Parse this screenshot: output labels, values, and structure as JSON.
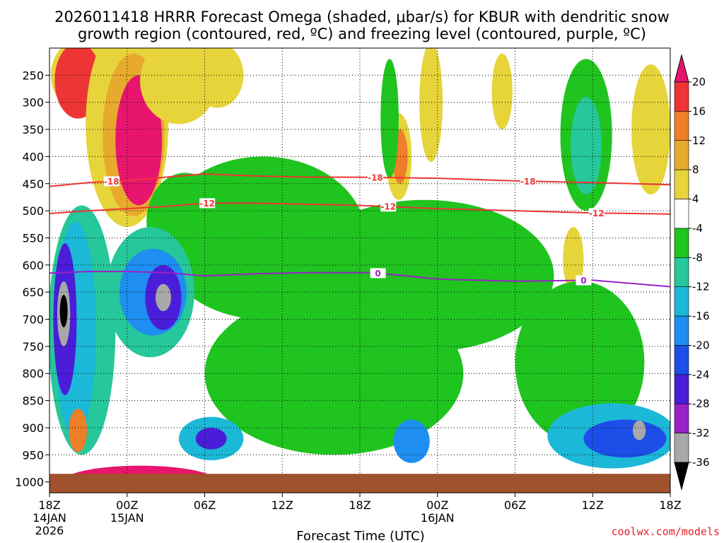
{
  "chart_data": {
    "type": "heatmap",
    "title_line1": "2026011418 HRRR Forecast Omega (shaded, μbar/s) for KBUR with dendritic snow",
    "title_line2": "growth region (contoured, red, ºC) and freezing level (contoured, purple, ºC)",
    "xlabel": "Forecast Time (UTC)",
    "credit": "coolwx.com/models",
    "x_range_hours": [
      0,
      48
    ],
    "x_ticks": [
      {
        "h": 0,
        "label": "18Z",
        "date": "14JAN",
        "year": "2026"
      },
      {
        "h": 6,
        "label": "00Z",
        "date": "15JAN",
        "year": ""
      },
      {
        "h": 12,
        "label": "06Z",
        "date": "",
        "year": ""
      },
      {
        "h": 18,
        "label": "12Z",
        "date": "",
        "year": ""
      },
      {
        "h": 24,
        "label": "18Z",
        "date": "",
        "year": ""
      },
      {
        "h": 30,
        "label": "00Z",
        "date": "16JAN",
        "year": ""
      },
      {
        "h": 36,
        "label": "06Z",
        "date": "",
        "year": ""
      },
      {
        "h": 42,
        "label": "12Z",
        "date": "",
        "year": ""
      },
      {
        "h": 48,
        "label": "18Z",
        "date": "",
        "year": ""
      }
    ],
    "y_axis": "pressure (hPa)",
    "y_range": [
      200,
      1020
    ],
    "y_ticks": [
      250,
      300,
      350,
      400,
      450,
      500,
      550,
      600,
      650,
      700,
      750,
      800,
      850,
      900,
      950,
      1000
    ],
    "ground_level_hPa": 985,
    "colorbar": {
      "labels": [
        "20",
        "16",
        "12",
        "8",
        "4",
        "-4",
        "-8",
        "-12",
        "-16",
        "-20",
        "-24",
        "-28",
        "-32",
        "-36"
      ],
      "colors": [
        "#e8156e",
        "#ee3535",
        "#ee7e28",
        "#e8aa2d",
        "#e6d43a",
        "#ffffff",
        "#1fc41f",
        "#26c79a",
        "#1cb8d8",
        "#1e8ef0",
        "#1e4ee8",
        "#4a1ed8",
        "#9a20c8",
        "#a8a8a8",
        "#000000"
      ]
    },
    "contours": [
      {
        "name": "dgz_-18C",
        "color": "#ee3535",
        "label": "-18",
        "points": [
          [
            0,
            455
          ],
          [
            3,
            448
          ],
          [
            6,
            444
          ],
          [
            9,
            438
          ],
          [
            12,
            432
          ],
          [
            16,
            436
          ],
          [
            20,
            438
          ],
          [
            24,
            438
          ],
          [
            30,
            440
          ],
          [
            36,
            445
          ],
          [
            42,
            448
          ],
          [
            48,
            452
          ]
        ],
        "label_at": [
          4.8,
          25.2,
          37.0
        ]
      },
      {
        "name": "dgz_-12C",
        "color": "#ee3535",
        "label": "-12",
        "points": [
          [
            0,
            505
          ],
          [
            3,
            500
          ],
          [
            6,
            496
          ],
          [
            9,
            492
          ],
          [
            12,
            486
          ],
          [
            16,
            486
          ],
          [
            20,
            488
          ],
          [
            24,
            490
          ],
          [
            30,
            496
          ],
          [
            36,
            500
          ],
          [
            42,
            504
          ],
          [
            48,
            506
          ]
        ],
        "label_at": [
          12.2,
          26.2,
          42.3
        ]
      },
      {
        "name": "freezing_0C",
        "color": "#9a20c8",
        "label": "0",
        "points": [
          [
            0,
            615
          ],
          [
            3,
            612
          ],
          [
            6,
            612
          ],
          [
            9,
            614
          ],
          [
            12,
            620
          ],
          [
            16,
            616
          ],
          [
            20,
            614
          ],
          [
            25,
            614
          ],
          [
            30,
            626
          ],
          [
            36,
            630
          ],
          [
            42,
            628
          ],
          [
            48,
            640
          ]
        ],
        "label_at": [
          25.4,
          41.3
        ]
      }
    ],
    "omega_blobs": [
      {
        "cx": 3.6,
        "cy": 250,
        "rx": 3.5,
        "ry": 80,
        "level": 4
      },
      {
        "cx": 2.2,
        "cy": 260,
        "rx": 1.8,
        "ry": 70,
        "level": 1
      },
      {
        "cx": 6.0,
        "cy": 340,
        "rx": 3.2,
        "ry": 190,
        "level": 4
      },
      {
        "cx": 6.5,
        "cy": 360,
        "rx": 2.4,
        "ry": 150,
        "level": 3
      },
      {
        "cx": 6.9,
        "cy": 370,
        "rx": 1.8,
        "ry": 120,
        "level": 0
      },
      {
        "cx": 10.0,
        "cy": 260,
        "rx": 3.0,
        "ry": 80,
        "level": 4
      },
      {
        "cx": 13.0,
        "cy": 250,
        "rx": 2.0,
        "ry": 60,
        "level": 4
      },
      {
        "cx": 27.0,
        "cy": 400,
        "rx": 1.0,
        "ry": 80,
        "level": 4
      },
      {
        "cx": 27.1,
        "cy": 400,
        "rx": 0.6,
        "ry": 50,
        "level": 2
      },
      {
        "cx": 29.5,
        "cy": 300,
        "rx": 0.9,
        "ry": 110,
        "level": 4
      },
      {
        "cx": 35.0,
        "cy": 280,
        "rx": 0.8,
        "ry": 70,
        "level": 4
      },
      {
        "cx": 46.5,
        "cy": 350,
        "rx": 1.5,
        "ry": 120,
        "level": 4
      },
      {
        "cx": 40.5,
        "cy": 590,
        "rx": 0.8,
        "ry": 60,
        "level": 4
      },
      {
        "cx": 7.0,
        "cy": 1000,
        "rx": 6.0,
        "ry": 30,
        "level": 0
      },
      {
        "cx": 41.5,
        "cy": 360,
        "rx": 2.0,
        "ry": 140,
        "level": 6
      },
      {
        "cx": 41.5,
        "cy": 380,
        "rx": 1.2,
        "ry": 90,
        "level": 7
      },
      {
        "cx": 26.3,
        "cy": 330,
        "rx": 0.7,
        "ry": 110,
        "level": 6
      },
      {
        "cx": 16.5,
        "cy": 550,
        "rx": 8.0,
        "ry": 150,
        "level": 6
      },
      {
        "cx": 29.0,
        "cy": 620,
        "rx": 10.0,
        "ry": 140,
        "level": 6
      },
      {
        "cx": 41.0,
        "cy": 780,
        "rx": 5.0,
        "ry": 150,
        "level": 6
      },
      {
        "cx": 22.0,
        "cy": 800,
        "rx": 10.0,
        "ry": 150,
        "level": 6
      },
      {
        "cx": 10.5,
        "cy": 520,
        "rx": 3.0,
        "ry": 90,
        "level": 6
      },
      {
        "cx": 2.5,
        "cy": 720,
        "rx": 2.6,
        "ry": 230,
        "level": 7
      },
      {
        "cx": 2.0,
        "cy": 720,
        "rx": 1.6,
        "ry": 200,
        "level": 8
      },
      {
        "cx": 1.2,
        "cy": 700,
        "rx": 0.9,
        "ry": 140,
        "level": 11
      },
      {
        "cx": 1.1,
        "cy": 690,
        "rx": 0.5,
        "ry": 60,
        "level": 13
      },
      {
        "cx": 1.1,
        "cy": 685,
        "rx": 0.3,
        "ry": 30,
        "level": 14
      },
      {
        "cx": 7.8,
        "cy": 650,
        "rx": 3.4,
        "ry": 120,
        "level": 7
      },
      {
        "cx": 8.0,
        "cy": 650,
        "rx": 2.6,
        "ry": 80,
        "level": 9
      },
      {
        "cx": 8.8,
        "cy": 660,
        "rx": 1.4,
        "ry": 60,
        "level": 11
      },
      {
        "cx": 8.8,
        "cy": 660,
        "rx": 0.6,
        "ry": 25,
        "level": 13
      },
      {
        "cx": 12.5,
        "cy": 920,
        "rx": 2.5,
        "ry": 40,
        "level": 8
      },
      {
        "cx": 12.5,
        "cy": 920,
        "rx": 1.2,
        "ry": 20,
        "level": 11
      },
      {
        "cx": 43.5,
        "cy": 915,
        "rx": 5.0,
        "ry": 60,
        "level": 8
      },
      {
        "cx": 44.5,
        "cy": 920,
        "rx": 3.2,
        "ry": 35,
        "level": 10
      },
      {
        "cx": 45.6,
        "cy": 905,
        "rx": 0.5,
        "ry": 18,
        "level": 13
      },
      {
        "cx": 28.0,
        "cy": 925,
        "rx": 1.4,
        "ry": 40,
        "level": 9
      },
      {
        "cx": 2.2,
        "cy": 905,
        "rx": 0.7,
        "ry": 40,
        "level": 2
      }
    ]
  }
}
